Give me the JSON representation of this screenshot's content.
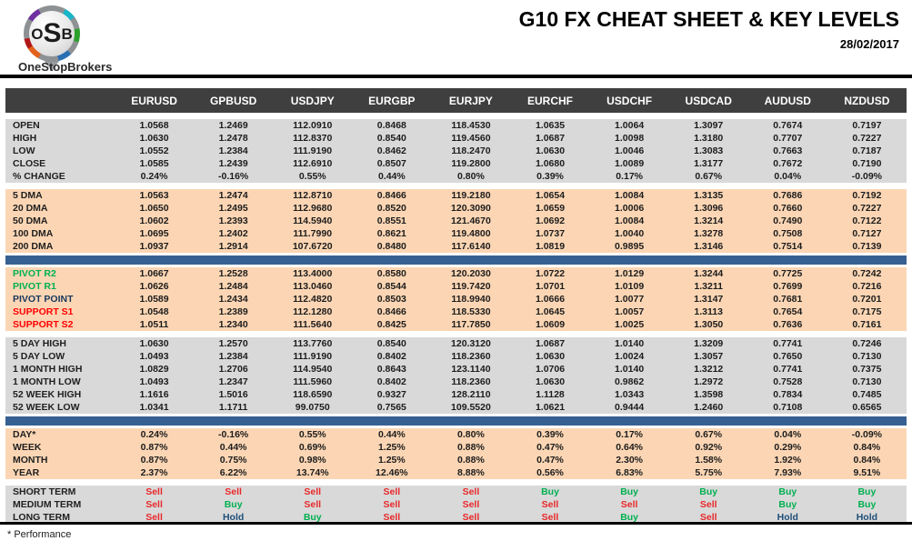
{
  "brand": {
    "letter_o": "O",
    "letter_s": "S",
    "letter_b": "B",
    "name": "OneStopBrokers"
  },
  "header": {
    "title": "G10 FX CHEAT SHEET & KEY LEVELS",
    "date": "28/02/2017"
  },
  "footnote": "* Performance",
  "colors": {
    "header_bg": "#3F3F3F",
    "band_gray": "#D9D9D9",
    "band_peach": "#FCD6B4",
    "accent_bar": "#376092",
    "buy": "#00B050",
    "sell": "#E8282A",
    "hold": "#1F4E79",
    "pivot_resistance": "#00B050",
    "pivot_point": "#17375D",
    "support": "#FF0000"
  },
  "chart_data": {
    "type": "table",
    "title": "G10 FX CHEAT SHEET & KEY LEVELS",
    "date": "28/02/2017",
    "columns": [
      "EURUSD",
      "GPBUSD",
      "USDJPY",
      "EURGBP",
      "EURJPY",
      "EURCHF",
      "USDCHF",
      "USDCAD",
      "AUDUSD",
      "NZDUSD"
    ],
    "sections": [
      {
        "id": "ohlc",
        "band": "gray",
        "divider_after": "gap",
        "rows": [
          {
            "label": "OPEN",
            "values": [
              "1.0568",
              "1.2469",
              "112.0910",
              "0.8468",
              "118.4530",
              "1.0635",
              "1.0064",
              "1.3097",
              "0.7674",
              "0.7197"
            ]
          },
          {
            "label": "HIGH",
            "values": [
              "1.0630",
              "1.2478",
              "112.8370",
              "0.8540",
              "119.4560",
              "1.0687",
              "1.0098",
              "1.3180",
              "0.7707",
              "0.7227"
            ]
          },
          {
            "label": "LOW",
            "values": [
              "1.0552",
              "1.2384",
              "111.9190",
              "0.8462",
              "118.2470",
              "1.0630",
              "1.0046",
              "1.3083",
              "0.7663",
              "0.7187"
            ]
          },
          {
            "label": "CLOSE",
            "values": [
              "1.0585",
              "1.2439",
              "112.6910",
              "0.8507",
              "119.2800",
              "1.0680",
              "1.0089",
              "1.3177",
              "0.7672",
              "0.7190"
            ]
          },
          {
            "label": "% CHANGE",
            "values": [
              "0.24%",
              "-0.16%",
              "0.55%",
              "0.44%",
              "0.80%",
              "0.39%",
              "0.17%",
              "0.67%",
              "0.04%",
              "-0.09%"
            ]
          }
        ]
      },
      {
        "id": "moving_averages",
        "band": "peach",
        "divider_after": "bluebar",
        "rows": [
          {
            "label": "5 DMA",
            "values": [
              "1.0563",
              "1.2474",
              "112.8710",
              "0.8466",
              "119.2180",
              "1.0654",
              "1.0084",
              "1.3135",
              "0.7686",
              "0.7192"
            ]
          },
          {
            "label": "20 DMA",
            "values": [
              "1.0650",
              "1.2495",
              "112.9680",
              "0.8520",
              "120.3090",
              "1.0659",
              "1.0006",
              "1.3096",
              "0.7660",
              "0.7227"
            ]
          },
          {
            "label": "50 DMA",
            "values": [
              "1.0602",
              "1.2393",
              "114.5940",
              "0.8551",
              "121.4670",
              "1.0692",
              "1.0084",
              "1.3214",
              "0.7490",
              "0.7122"
            ]
          },
          {
            "label": "100 DMA",
            "values": [
              "1.0695",
              "1.2402",
              "111.7990",
              "0.8621",
              "119.4800",
              "1.0737",
              "1.0040",
              "1.3278",
              "0.7508",
              "0.7127"
            ]
          },
          {
            "label": "200 DMA",
            "values": [
              "1.0937",
              "1.2914",
              "107.6720",
              "0.8480",
              "117.6140",
              "1.0819",
              "0.9895",
              "1.3146",
              "0.7514",
              "0.7139"
            ]
          }
        ]
      },
      {
        "id": "pivots",
        "band": "peach",
        "divider_after": "gap",
        "rows": [
          {
            "label": "PIVOT R2",
            "label_color": "green",
            "values": [
              "1.0667",
              "1.2528",
              "113.4000",
              "0.8580",
              "120.2030",
              "1.0722",
              "1.0129",
              "1.3244",
              "0.7725",
              "0.7242"
            ]
          },
          {
            "label": "PIVOT R1",
            "label_color": "green",
            "values": [
              "1.0626",
              "1.2484",
              "113.0460",
              "0.8544",
              "119.7420",
              "1.0701",
              "1.0109",
              "1.3211",
              "0.7699",
              "0.7216"
            ]
          },
          {
            "label": "PIVOT POINT",
            "label_color": "navy",
            "values": [
              "1.0589",
              "1.2434",
              "112.4820",
              "0.8503",
              "118.9940",
              "1.0666",
              "1.0077",
              "1.3147",
              "0.7681",
              "0.7201"
            ]
          },
          {
            "label": "SUPPORT S1",
            "label_color": "red",
            "values": [
              "1.0548",
              "1.2389",
              "112.1280",
              "0.8466",
              "118.5330",
              "1.0645",
              "1.0057",
              "1.3113",
              "0.7654",
              "0.7175"
            ]
          },
          {
            "label": "SUPPORT S2",
            "label_color": "red",
            "values": [
              "1.0511",
              "1.2340",
              "111.5640",
              "0.8425",
              "117.7850",
              "1.0609",
              "1.0025",
              "1.3050",
              "0.7636",
              "0.7161"
            ]
          }
        ]
      },
      {
        "id": "ranges",
        "band": "gray",
        "divider_after": "bluebar",
        "rows": [
          {
            "label": "5 DAY HIGH",
            "values": [
              "1.0630",
              "1.2570",
              "113.7760",
              "0.8540",
              "120.3120",
              "1.0687",
              "1.0140",
              "1.3209",
              "0.7741",
              "0.7246"
            ]
          },
          {
            "label": "5 DAY LOW",
            "values": [
              "1.0493",
              "1.2384",
              "111.9190",
              "0.8402",
              "118.2360",
              "1.0630",
              "1.0024",
              "1.3057",
              "0.7650",
              "0.7130"
            ]
          },
          {
            "label": "1 MONTH HIGH",
            "values": [
              "1.0829",
              "1.2706",
              "114.9540",
              "0.8643",
              "123.1140",
              "1.0706",
              "1.0140",
              "1.3212",
              "0.7741",
              "0.7375"
            ]
          },
          {
            "label": "1 MONTH LOW",
            "values": [
              "1.0493",
              "1.2347",
              "111.5960",
              "0.8402",
              "118.2360",
              "1.0630",
              "0.9862",
              "1.2972",
              "0.7528",
              "0.7130"
            ]
          },
          {
            "label": "52 WEEK HIGH",
            "values": [
              "1.1616",
              "1.5016",
              "118.6590",
              "0.9327",
              "128.2110",
              "1.1128",
              "1.0343",
              "1.3598",
              "0.7834",
              "0.7485"
            ]
          },
          {
            "label": "52 WEEK LOW",
            "values": [
              "1.0341",
              "1.1711",
              "99.0750",
              "0.7565",
              "109.5520",
              "1.0621",
              "0.9444",
              "1.2460",
              "0.7108",
              "0.6565"
            ]
          }
        ]
      },
      {
        "id": "performance",
        "band": "peach",
        "divider_after": "gap",
        "rows": [
          {
            "label": "DAY*",
            "values": [
              "0.24%",
              "-0.16%",
              "0.55%",
              "0.44%",
              "0.80%",
              "0.39%",
              "0.17%",
              "0.67%",
              "0.04%",
              "-0.09%"
            ]
          },
          {
            "label": "WEEK",
            "values": [
              "0.87%",
              "0.44%",
              "0.69%",
              "1.25%",
              "0.88%",
              "0.47%",
              "0.64%",
              "0.92%",
              "0.29%",
              "0.84%"
            ]
          },
          {
            "label": "MONTH",
            "values": [
              "0.87%",
              "0.75%",
              "0.98%",
              "1.25%",
              "0.88%",
              "0.47%",
              "2.30%",
              "1.58%",
              "1.92%",
              "0.84%"
            ]
          },
          {
            "label": "YEAR",
            "values": [
              "2.37%",
              "6.22%",
              "13.74%",
              "12.46%",
              "8.88%",
              "0.56%",
              "6.83%",
              "5.75%",
              "7.93%",
              "9.51%"
            ]
          }
        ]
      },
      {
        "id": "signals",
        "band": "gray",
        "divider_after": "none",
        "value_type": "signal",
        "rows": [
          {
            "label": "SHORT TERM",
            "values": [
              "Sell",
              "Sell",
              "Sell",
              "Sell",
              "Sell",
              "Buy",
              "Buy",
              "Buy",
              "Buy",
              "Buy"
            ]
          },
          {
            "label": "MEDIUM TERM",
            "values": [
              "Sell",
              "Buy",
              "Sell",
              "Sell",
              "Sell",
              "Sell",
              "Sell",
              "Sell",
              "Buy",
              "Buy"
            ]
          },
          {
            "label": "LONG TERM",
            "values": [
              "Sell",
              "Hold",
              "Buy",
              "Sell",
              "Sell",
              "Sell",
              "Buy",
              "Sell",
              "Hold",
              "Hold"
            ]
          }
        ]
      }
    ]
  }
}
